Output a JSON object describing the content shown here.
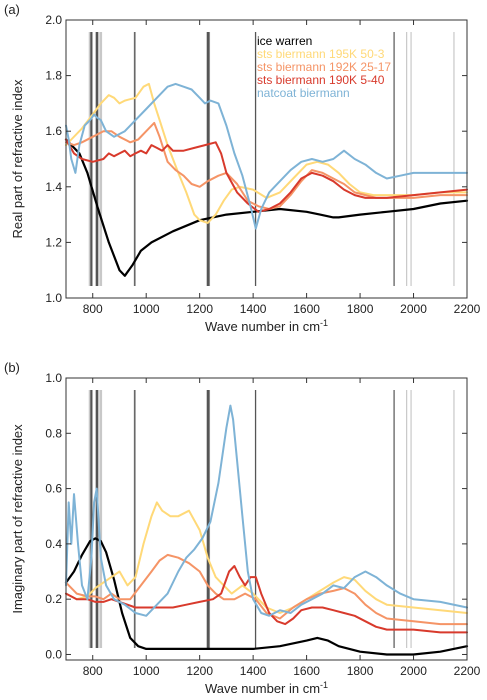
{
  "chart_data": [
    {
      "type": "line",
      "panel_label": "(a)",
      "xlabel": "Wave number in cm",
      "xlabel_sup": "-1",
      "ylabel": "Real part of refractive index",
      "xlim": [
        700,
        2200
      ],
      "ylim": [
        1.0,
        2.0
      ],
      "xticks": [
        800,
        1000,
        1200,
        1400,
        1600,
        1800,
        2000,
        2200
      ],
      "yticks": [
        "1.0",
        "1.2",
        "1.4",
        "1.6",
        "1.8",
        "2.0"
      ],
      "grid": false,
      "legend_position": "top-right",
      "series": [
        {
          "name": "ice warren",
          "color": "#000000",
          "x": [
            700,
            750,
            780,
            820,
            860,
            900,
            920,
            950,
            980,
            1020,
            1100,
            1200,
            1300,
            1400,
            1500,
            1600,
            1650,
            1700,
            1720,
            1800,
            1900,
            2000,
            2100,
            2200
          ],
          "y": [
            1.57,
            1.52,
            1.45,
            1.32,
            1.2,
            1.1,
            1.08,
            1.12,
            1.17,
            1.2,
            1.24,
            1.28,
            1.3,
            1.31,
            1.32,
            1.31,
            1.3,
            1.29,
            1.29,
            1.3,
            1.31,
            1.32,
            1.34,
            1.35
          ]
        },
        {
          "name": "sts biermann 195K 50-3",
          "color": "#ffd978",
          "x": [
            700,
            720,
            760,
            800,
            830,
            860,
            880,
            900,
            920,
            960,
            990,
            1010,
            1030,
            1050,
            1080,
            1120,
            1150,
            1180,
            1200,
            1230,
            1260,
            1290,
            1320,
            1350,
            1400,
            1450,
            1500,
            1550,
            1600,
            1640,
            1680,
            1720,
            1760,
            1800,
            1850,
            1900,
            2000,
            2100,
            2200
          ],
          "y": [
            1.55,
            1.57,
            1.61,
            1.66,
            1.7,
            1.73,
            1.72,
            1.7,
            1.71,
            1.72,
            1.76,
            1.77,
            1.7,
            1.64,
            1.55,
            1.45,
            1.38,
            1.3,
            1.28,
            1.27,
            1.3,
            1.35,
            1.39,
            1.4,
            1.39,
            1.36,
            1.38,
            1.43,
            1.48,
            1.49,
            1.48,
            1.45,
            1.41,
            1.38,
            1.37,
            1.37,
            1.37,
            1.38,
            1.38
          ]
        },
        {
          "name": "sts biermann 192K 25-17",
          "color": "#f59466",
          "x": [
            700,
            730,
            760,
            800,
            840,
            870,
            900,
            940,
            970,
            1000,
            1030,
            1050,
            1080,
            1110,
            1140,
            1170,
            1200,
            1230,
            1270,
            1300,
            1340,
            1380,
            1420,
            1460,
            1500,
            1540,
            1580,
            1620,
            1660,
            1700,
            1740,
            1780,
            1820,
            1860,
            1900,
            2000,
            2100,
            2200
          ],
          "y": [
            1.56,
            1.55,
            1.56,
            1.58,
            1.6,
            1.6,
            1.58,
            1.56,
            1.57,
            1.6,
            1.63,
            1.58,
            1.49,
            1.46,
            1.44,
            1.41,
            1.4,
            1.42,
            1.44,
            1.45,
            1.41,
            1.35,
            1.33,
            1.32,
            1.33,
            1.37,
            1.42,
            1.46,
            1.45,
            1.43,
            1.41,
            1.38,
            1.37,
            1.36,
            1.36,
            1.36,
            1.37,
            1.37
          ]
        },
        {
          "name": "sts biermann 190K 5-40",
          "color": "#d83a2c",
          "x": [
            700,
            730,
            760,
            800,
            840,
            860,
            880,
            900,
            920,
            940,
            960,
            980,
            1000,
            1020,
            1040,
            1060,
            1080,
            1100,
            1140,
            1180,
            1220,
            1260,
            1280,
            1300,
            1340,
            1380,
            1420,
            1460,
            1500,
            1540,
            1580,
            1620,
            1660,
            1700,
            1740,
            1780,
            1820,
            1860,
            1900,
            2000,
            2100,
            2200
          ],
          "y": [
            1.57,
            1.52,
            1.5,
            1.49,
            1.5,
            1.52,
            1.51,
            1.52,
            1.53,
            1.51,
            1.52,
            1.53,
            1.52,
            1.55,
            1.54,
            1.53,
            1.55,
            1.53,
            1.53,
            1.54,
            1.55,
            1.56,
            1.52,
            1.45,
            1.38,
            1.34,
            1.31,
            1.32,
            1.34,
            1.38,
            1.43,
            1.45,
            1.44,
            1.42,
            1.39,
            1.37,
            1.36,
            1.36,
            1.36,
            1.37,
            1.38,
            1.39
          ]
        },
        {
          "name": "natcoat biermann",
          "color": "#7eb3d6",
          "x": [
            700,
            710,
            720,
            735,
            750,
            770,
            790,
            805,
            815,
            830,
            850,
            880,
            920,
            960,
            1000,
            1040,
            1080,
            1110,
            1140,
            1170,
            1200,
            1220,
            1240,
            1270,
            1300,
            1330,
            1360,
            1390,
            1410,
            1430,
            1460,
            1500,
            1540,
            1580,
            1620,
            1660,
            1700,
            1740,
            1780,
            1820,
            1860,
            1900,
            1950,
            2000,
            2100,
            2200
          ],
          "y": [
            1.62,
            1.57,
            1.5,
            1.45,
            1.55,
            1.62,
            1.64,
            1.66,
            1.65,
            1.64,
            1.6,
            1.58,
            1.6,
            1.64,
            1.68,
            1.72,
            1.76,
            1.77,
            1.76,
            1.75,
            1.72,
            1.7,
            1.71,
            1.7,
            1.62,
            1.52,
            1.44,
            1.33,
            1.25,
            1.32,
            1.38,
            1.42,
            1.46,
            1.49,
            1.5,
            1.49,
            1.5,
            1.53,
            1.5,
            1.48,
            1.45,
            1.43,
            1.44,
            1.45,
            1.45,
            1.45
          ]
        }
      ]
    },
    {
      "type": "line",
      "panel_label": "(b)",
      "xlabel": "Wave number in cm",
      "xlabel_sup": "-1",
      "ylabel": "Imaginary part of refractive index",
      "xlim": [
        700,
        2200
      ],
      "ylim": [
        -0.02,
        1.0
      ],
      "xticks": [
        800,
        1000,
        1200,
        1400,
        1600,
        1800,
        2000,
        2200
      ],
      "yticks": [
        "0.0",
        "0.2",
        "0.4",
        "0.6",
        "0.8",
        "1.0"
      ],
      "grid": false,
      "series": [
        {
          "name": "ice warren",
          "color": "#000000",
          "x": [
            700,
            730,
            760,
            790,
            810,
            830,
            850,
            880,
            910,
            940,
            970,
            1000,
            1050,
            1100,
            1200,
            1300,
            1400,
            1500,
            1600,
            1640,
            1680,
            1720,
            1800,
            1900,
            2000,
            2100,
            2200
          ],
          "y": [
            0.26,
            0.3,
            0.36,
            0.41,
            0.42,
            0.41,
            0.37,
            0.27,
            0.15,
            0.06,
            0.03,
            0.02,
            0.02,
            0.02,
            0.02,
            0.02,
            0.02,
            0.03,
            0.05,
            0.06,
            0.05,
            0.03,
            0.01,
            0.0,
            0.0,
            0.01,
            0.03
          ]
        },
        {
          "name": "sts biermann 195K 50-3",
          "color": "#ffd978",
          "x": [
            700,
            740,
            780,
            810,
            840,
            870,
            900,
            930,
            960,
            990,
            1020,
            1040,
            1060,
            1090,
            1120,
            1160,
            1200,
            1230,
            1260,
            1290,
            1320,
            1360,
            1400,
            1450,
            1500,
            1550,
            1600,
            1650,
            1700,
            1740,
            1780,
            1820,
            1860,
            1900,
            2000,
            2100,
            2200
          ],
          "y": [
            0.22,
            0.2,
            0.21,
            0.24,
            0.26,
            0.28,
            0.3,
            0.25,
            0.28,
            0.4,
            0.5,
            0.55,
            0.52,
            0.5,
            0.5,
            0.52,
            0.45,
            0.35,
            0.28,
            0.25,
            0.22,
            0.25,
            0.22,
            0.17,
            0.15,
            0.17,
            0.2,
            0.23,
            0.26,
            0.28,
            0.27,
            0.23,
            0.2,
            0.18,
            0.17,
            0.16,
            0.15
          ]
        },
        {
          "name": "sts biermann 192K 25-17",
          "color": "#f59466",
          "x": [
            700,
            740,
            780,
            810,
            840,
            870,
            900,
            940,
            980,
            1020,
            1050,
            1080,
            1120,
            1160,
            1200,
            1230,
            1260,
            1290,
            1330,
            1370,
            1410,
            1450,
            1500,
            1550,
            1600,
            1650,
            1700,
            1740,
            1780,
            1820,
            1860,
            1900,
            2000,
            2100,
            2200
          ],
          "y": [
            0.26,
            0.22,
            0.21,
            0.21,
            0.2,
            0.22,
            0.2,
            0.2,
            0.25,
            0.3,
            0.34,
            0.36,
            0.35,
            0.33,
            0.3,
            0.25,
            0.22,
            0.2,
            0.2,
            0.22,
            0.2,
            0.15,
            0.13,
            0.17,
            0.2,
            0.22,
            0.23,
            0.24,
            0.22,
            0.18,
            0.15,
            0.13,
            0.12,
            0.11,
            0.11
          ]
        },
        {
          "name": "sts biermann 190K 5-40",
          "color": "#d83a2c",
          "x": [
            700,
            740,
            780,
            810,
            840,
            870,
            900,
            930,
            960,
            990,
            1020,
            1060,
            1100,
            1150,
            1200,
            1250,
            1280,
            1310,
            1330,
            1350,
            1370,
            1390,
            1410,
            1430,
            1460,
            1490,
            1520,
            1550,
            1580,
            1620,
            1660,
            1700,
            1740,
            1780,
            1820,
            1860,
            1900,
            2000,
            2100,
            2200
          ],
          "y": [
            0.22,
            0.2,
            0.2,
            0.19,
            0.19,
            0.2,
            0.19,
            0.18,
            0.17,
            0.17,
            0.17,
            0.17,
            0.17,
            0.18,
            0.19,
            0.2,
            0.22,
            0.3,
            0.32,
            0.28,
            0.25,
            0.28,
            0.28,
            0.22,
            0.15,
            0.12,
            0.11,
            0.13,
            0.16,
            0.17,
            0.17,
            0.16,
            0.15,
            0.14,
            0.12,
            0.1,
            0.09,
            0.09,
            0.08,
            0.08
          ]
        },
        {
          "name": "natcoat biermann",
          "color": "#7eb3d6",
          "x": [
            700,
            710,
            720,
            730,
            745,
            760,
            780,
            795,
            805,
            815,
            830,
            850,
            880,
            920,
            960,
            1000,
            1040,
            1080,
            1120,
            1150,
            1180,
            1210,
            1240,
            1270,
            1300,
            1315,
            1325,
            1340,
            1360,
            1380,
            1400,
            1430,
            1460,
            1500,
            1540,
            1580,
            1620,
            1660,
            1700,
            1740,
            1780,
            1820,
            1860,
            1900,
            1950,
            2000,
            2100,
            2200
          ],
          "y": [
            0.25,
            0.55,
            0.4,
            0.58,
            0.4,
            0.25,
            0.2,
            0.35,
            0.55,
            0.6,
            0.35,
            0.25,
            0.2,
            0.18,
            0.15,
            0.14,
            0.18,
            0.22,
            0.3,
            0.35,
            0.38,
            0.42,
            0.48,
            0.62,
            0.82,
            0.9,
            0.85,
            0.7,
            0.5,
            0.3,
            0.2,
            0.15,
            0.14,
            0.16,
            0.15,
            0.18,
            0.2,
            0.22,
            0.25,
            0.24,
            0.28,
            0.3,
            0.28,
            0.25,
            0.22,
            0.2,
            0.19,
            0.17
          ]
        }
      ]
    }
  ]
}
